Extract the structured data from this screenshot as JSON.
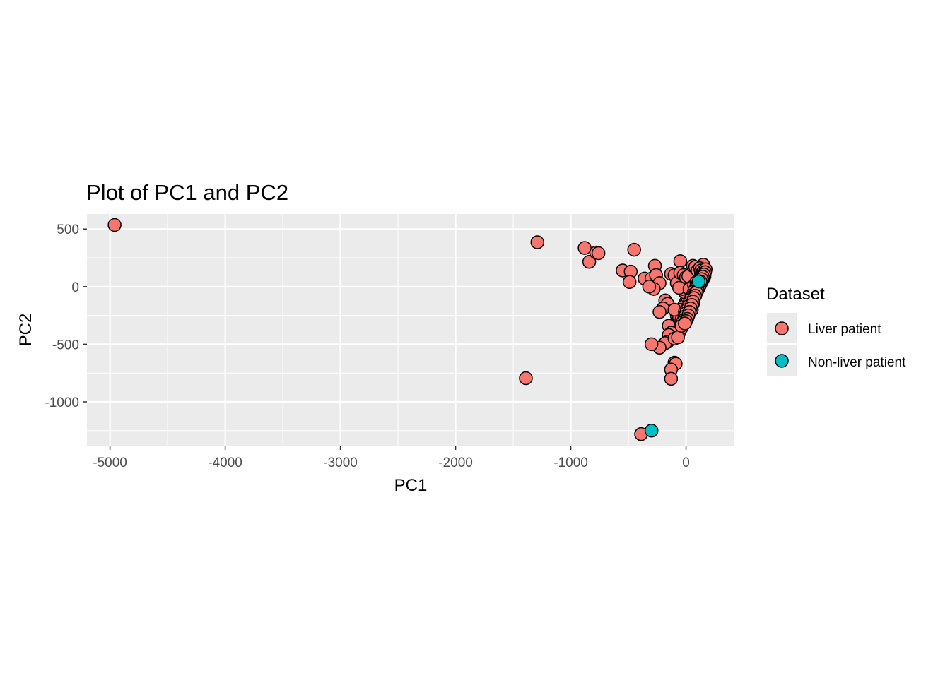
{
  "chart_data": {
    "type": "scatter",
    "title": "Plot of PC1 and PC2",
    "xlabel": "PC1",
    "ylabel": "PC2",
    "xlim": [
      -5200,
      420
    ],
    "ylim": [
      -1380,
      630
    ],
    "x_ticks": [
      -5000,
      -4000,
      -3000,
      -2000,
      -1000,
      0
    ],
    "y_ticks": [
      500,
      0,
      -500,
      -1000
    ],
    "x_tick_labels": [
      "-5000",
      "-4000",
      "-3000",
      "-2000",
      "-1000",
      "0"
    ],
    "y_tick_labels": [
      "500",
      "0",
      "-500",
      "-1000"
    ],
    "grid": true,
    "legend": {
      "title": "Dataset",
      "placement": "right"
    },
    "series": [
      {
        "name": "Liver patient",
        "color": "#F8766D",
        "points": [
          [
            -4960,
            535
          ],
          [
            -1290,
            385
          ],
          [
            -880,
            335
          ],
          [
            -840,
            215
          ],
          [
            -780,
            295
          ],
          [
            -760,
            290
          ],
          [
            -450,
            320
          ],
          [
            -550,
            140
          ],
          [
            -480,
            130
          ],
          [
            -490,
            40
          ],
          [
            -360,
            70
          ],
          [
            -300,
            70
          ],
          [
            -270,
            180
          ],
          [
            -260,
            100
          ],
          [
            -230,
            30
          ],
          [
            -280,
            -20
          ],
          [
            -320,
            0
          ],
          [
            -50,
            220
          ],
          [
            -130,
            110
          ],
          [
            -100,
            100
          ],
          [
            -80,
            30
          ],
          [
            -50,
            120
          ],
          [
            -20,
            100
          ],
          [
            0,
            80
          ],
          [
            20,
            90
          ],
          [
            60,
            180
          ],
          [
            80,
            170
          ],
          [
            100,
            140
          ],
          [
            150,
            190
          ],
          [
            140,
            150
          ],
          [
            130,
            110
          ],
          [
            120,
            70
          ],
          [
            100,
            30
          ],
          [
            80,
            -10
          ],
          [
            60,
            -40
          ],
          [
            40,
            -70
          ],
          [
            20,
            -100
          ],
          [
            0,
            -130
          ],
          [
            -20,
            -170
          ],
          [
            -50,
            -200
          ],
          [
            -80,
            -250
          ],
          [
            -60,
            -280
          ],
          [
            -30,
            -320
          ],
          [
            -50,
            -350
          ],
          [
            -80,
            -370
          ],
          [
            -110,
            -400
          ],
          [
            -60,
            -400
          ],
          [
            -40,
            -360
          ],
          [
            -10,
            -300
          ],
          [
            20,
            -250
          ],
          [
            50,
            -200
          ],
          [
            60,
            -150
          ],
          [
            40,
            -120
          ],
          [
            10,
            -90
          ],
          [
            -10,
            -50
          ],
          [
            -30,
            -20
          ],
          [
            -60,
            -10
          ],
          [
            30,
            -20
          ],
          [
            70,
            10
          ],
          [
            90,
            40
          ],
          [
            -180,
            -120
          ],
          [
            -160,
            -150
          ],
          [
            -200,
            -190
          ],
          [
            -230,
            -220
          ],
          [
            -150,
            -340
          ],
          [
            -130,
            -400
          ],
          [
            -150,
            -420
          ],
          [
            -160,
            -480
          ],
          [
            -180,
            -490
          ],
          [
            -230,
            -530
          ],
          [
            -100,
            -450
          ],
          [
            -70,
            -440
          ],
          [
            -300,
            -500
          ],
          [
            -100,
            -660
          ],
          [
            -90,
            -670
          ],
          [
            -130,
            -720
          ],
          [
            -130,
            -800
          ],
          [
            -1390,
            -795
          ],
          [
            -390,
            -1280
          ],
          [
            -60,
            -270
          ],
          [
            -40,
            -290
          ],
          [
            -100,
            -200
          ],
          [
            -10,
            -220
          ],
          [
            70,
            -60
          ]
        ]
      },
      {
        "name": "Non-liver patient",
        "color": "#00BFC4",
        "points": [
          [
            110,
            45
          ],
          [
            -300,
            -1250
          ]
        ]
      }
    ],
    "cluster_points": [
      [
        120,
        160
      ],
      [
        130,
        140
      ],
      [
        140,
        120
      ],
      [
        150,
        130
      ],
      [
        160,
        110
      ],
      [
        140,
        95
      ],
      [
        130,
        80
      ],
      [
        120,
        60
      ],
      [
        110,
        40
      ],
      [
        100,
        20
      ],
      [
        90,
        0
      ],
      [
        80,
        -20
      ],
      [
        70,
        -40
      ],
      [
        60,
        -70
      ],
      [
        50,
        -90
      ],
      [
        40,
        -110
      ],
      [
        30,
        -140
      ],
      [
        20,
        -170
      ],
      [
        10,
        -200
      ],
      [
        0,
        -230
      ],
      [
        -10,
        -260
      ],
      [
        -20,
        -290
      ],
      [
        -30,
        -310
      ],
      [
        -40,
        -340
      ],
      [
        160,
        90
      ],
      [
        150,
        70
      ],
      [
        140,
        50
      ],
      [
        130,
        30
      ],
      [
        120,
        10
      ],
      [
        110,
        -10
      ],
      [
        100,
        -30
      ],
      [
        90,
        -50
      ],
      [
        80,
        -80
      ],
      [
        70,
        -100
      ],
      [
        60,
        -130
      ],
      [
        50,
        -160
      ],
      [
        40,
        -190
      ],
      [
        30,
        -220
      ],
      [
        20,
        -250
      ],
      [
        10,
        -280
      ],
      [
        0,
        -300
      ],
      [
        -10,
        -320
      ],
      [
        170,
        150
      ],
      [
        165,
        125
      ],
      [
        155,
        105
      ],
      [
        145,
        85
      ],
      [
        135,
        65
      ],
      [
        125,
        45
      ]
    ]
  }
}
